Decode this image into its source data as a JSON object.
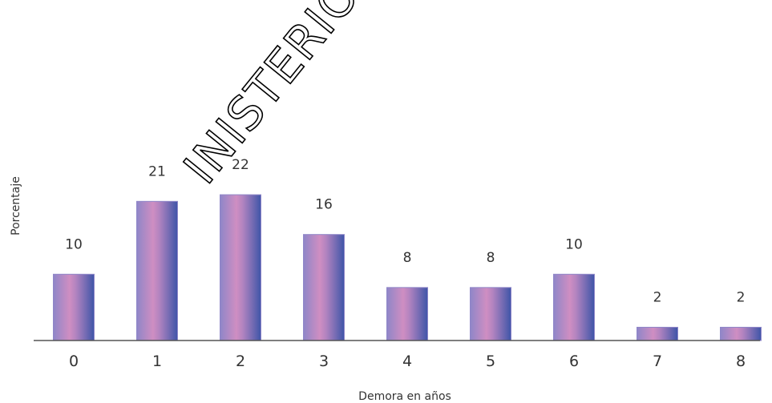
{
  "chart_data": {
    "type": "bar",
    "categories": [
      "0",
      "1",
      "2",
      "3",
      "4",
      "5",
      "6",
      "7",
      "8"
    ],
    "values": [
      10,
      21,
      22,
      16,
      8,
      8,
      10,
      2,
      2
    ],
    "data_labels": [
      "10",
      "21",
      "22",
      "16",
      "8",
      "8",
      "10",
      "2",
      "2"
    ],
    "title": "",
    "xlabel": "Demora en años",
    "ylabel": "Porcentaje",
    "ylim": [
      0,
      25
    ],
    "grid": false,
    "legend": "none",
    "colors": {
      "bar_edge": "#8f86c8",
      "bar_mid": "#cf8ec2",
      "bar_right": "#3f55a8",
      "axis": "#555555"
    }
  },
  "watermark": {
    "text": "INISTERIO D"
  }
}
